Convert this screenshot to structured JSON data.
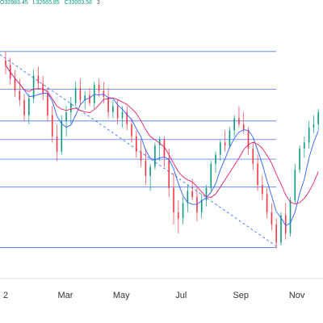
{
  "readout": {
    "open": "O32983.45",
    "low": "L32665.85",
    "close": "C33003.58",
    "badge": "3"
  },
  "colors": {
    "up": "#089981",
    "down": "#f23645",
    "ma_fast": "#2962ff",
    "ma_slow": "#e91e63",
    "levels": "#2962ff",
    "trendline": "#2962ff",
    "axis_text": "#333333",
    "axis_line": "#e0e3eb"
  },
  "chart_data": {
    "type": "candlestick",
    "x_ticks": [
      "2",
      "Mar",
      "May",
      "Jul",
      "Sep",
      "Nov"
    ],
    "x_tick_positions": [
      0,
      32,
      62,
      94,
      126,
      156
    ],
    "x_range": [
      -3,
      170
    ],
    "y_range": [
      28500,
      36700
    ],
    "y_label": "",
    "horizontal_levels": [
      35800,
      34560,
      33510,
      32900,
      32250,
      31330,
      29340
    ],
    "trendline": {
      "start": [
        -3,
        35700
      ],
      "end": [
        145,
        29380
      ]
    },
    "candles": [
      [
        35500,
        35800,
        35050,
        35350
      ],
      [
        35350,
        35600,
        34700,
        34900
      ],
      [
        34900,
        35200,
        34300,
        34500
      ],
      [
        34500,
        34900,
        34000,
        34200
      ],
      [
        34200,
        34400,
        33500,
        33700
      ],
      [
        33700,
        34400,
        33400,
        34250
      ],
      [
        34250,
        35200,
        34100,
        35000
      ],
      [
        35000,
        35300,
        34600,
        34750
      ],
      [
        34750,
        35000,
        34200,
        34400
      ],
      [
        34400,
        34600,
        33500,
        33700
      ],
      [
        33700,
        34000,
        32800,
        33000
      ],
      [
        33000,
        33400,
        32200,
        32500
      ],
      [
        32500,
        33700,
        32400,
        33500
      ],
      [
        33500,
        34000,
        33000,
        33800
      ],
      [
        33800,
        34300,
        33400,
        34100
      ],
      [
        34100,
        34800,
        34000,
        34600
      ],
      [
        34600,
        34900,
        34000,
        34200
      ],
      [
        34200,
        34500,
        33900,
        34350
      ],
      [
        34350,
        34600,
        34000,
        34100
      ],
      [
        34100,
        34800,
        33900,
        34700
      ],
      [
        34700,
        34900,
        34300,
        34500
      ],
      [
        34500,
        34800,
        34100,
        34300
      ],
      [
        34300,
        34600,
        33600,
        33800
      ],
      [
        33800,
        34200,
        33600,
        34000
      ],
      [
        34000,
        34200,
        33400,
        33600
      ],
      [
        33600,
        34000,
        33300,
        33800
      ],
      [
        33800,
        34000,
        33200,
        33400
      ],
      [
        33400,
        33600,
        32800,
        33000
      ],
      [
        33000,
        33200,
        32300,
        32500
      ],
      [
        32500,
        32900,
        32000,
        32200
      ],
      [
        32200,
        32600,
        31400,
        31700
      ],
      [
        31700,
        32100,
        31200,
        32000
      ],
      [
        32000,
        32800,
        31900,
        32700
      ],
      [
        32700,
        33000,
        32200,
        32900
      ],
      [
        32900,
        33000,
        32000,
        32300
      ],
      [
        32300,
        32600,
        31000,
        31300
      ],
      [
        31300,
        31800,
        30100,
        30500
      ],
      [
        30500,
        30900,
        29800,
        30300
      ],
      [
        30300,
        31000,
        30100,
        30800
      ],
      [
        30800,
        31400,
        30500,
        31200
      ],
      [
        31200,
        31600,
        30900,
        31000
      ],
      [
        31000,
        31300,
        30200,
        30500
      ],
      [
        30500,
        31100,
        30300,
        30900
      ],
      [
        30900,
        31400,
        30700,
        31300
      ],
      [
        31300,
        32200,
        31200,
        32100
      ],
      [
        32100,
        32500,
        31800,
        32400
      ],
      [
        32400,
        32900,
        32200,
        32800
      ],
      [
        32800,
        33200,
        32500,
        32700
      ],
      [
        32700,
        33300,
        32600,
        33200
      ],
      [
        33200,
        33700,
        33000,
        33600
      ],
      [
        33600,
        34000,
        33300,
        33400
      ],
      [
        33400,
        33800,
        33100,
        33200
      ],
      [
        33200,
        33300,
        32400,
        32600
      ],
      [
        32600,
        32800,
        31900,
        32100
      ],
      [
        32100,
        32400,
        31200,
        31400
      ],
      [
        31400,
        31700,
        30900,
        31100
      ],
      [
        31100,
        31300,
        30300,
        30500
      ],
      [
        30500,
        30800,
        29900,
        30100
      ],
      [
        30100,
        30300,
        29300,
        29500
      ],
      [
        29500,
        30500,
        29400,
        30400
      ],
      [
        30400,
        30800,
        29600,
        29800
      ],
      [
        29800,
        31000,
        29700,
        30900
      ],
      [
        30900,
        32100,
        30800,
        31900
      ],
      [
        31900,
        32700,
        31800,
        32600
      ],
      [
        32600,
        33000,
        32300,
        32800
      ],
      [
        32800,
        33500,
        32600,
        33300
      ],
      [
        33300,
        33700,
        33100,
        33400
      ],
      [
        33400,
        33900,
        33200,
        33800
      ]
    ]
  }
}
